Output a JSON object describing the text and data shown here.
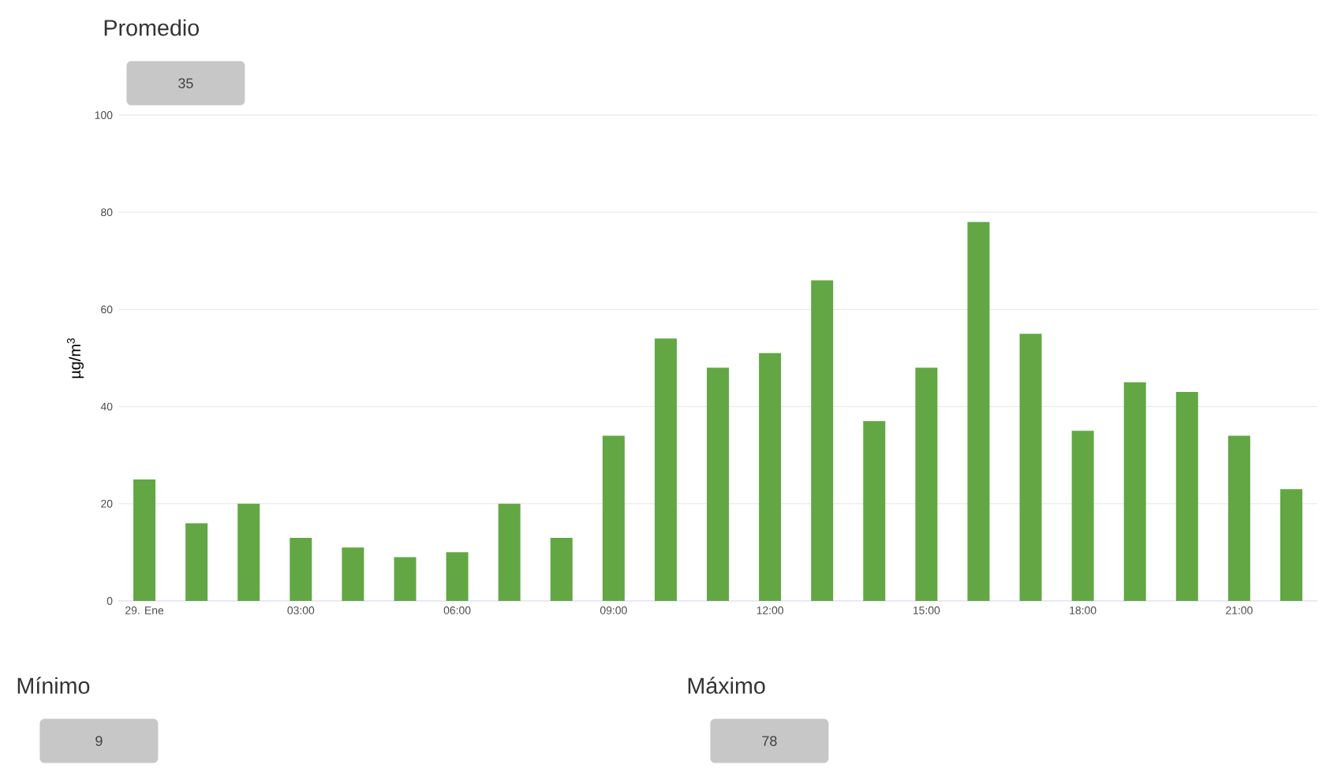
{
  "chart_data": {
    "type": "bar",
    "ylabel": "µg/m$^{3}$",
    "categories": [
      "29. Ene",
      null,
      null,
      "03:00",
      null,
      null,
      "06:00",
      null,
      null,
      "09:00",
      null,
      null,
      "12:00",
      null,
      null,
      "15:00",
      null,
      null,
      "18:00",
      null,
      null,
      "21:00",
      null
    ],
    "values": [
      25,
      16,
      20,
      13,
      11,
      9,
      10,
      20,
      13,
      34,
      54,
      48,
      51,
      66,
      37,
      48,
      78,
      55,
      35,
      45,
      43,
      34,
      23
    ],
    "color": "#62a744",
    "ylim": [
      0,
      100
    ],
    "yticks": [
      0,
      20,
      40,
      60,
      80,
      100
    ],
    "grid": "y",
    "annotations": [
      "Promedio",
      "35",
      "Mínimo",
      "9",
      "Máximo",
      "78"
    ]
  }
}
